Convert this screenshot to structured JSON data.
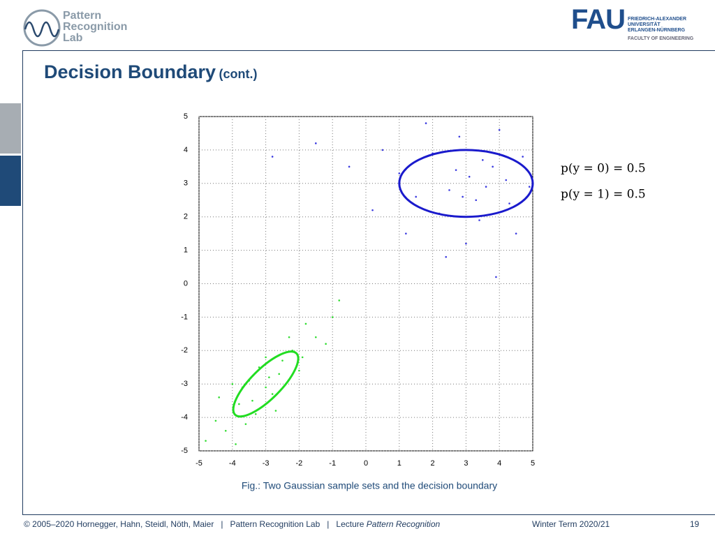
{
  "header": {
    "lab": [
      "Pattern",
      "Recognition",
      "Lab"
    ],
    "logo": "FAU",
    "university": [
      "FRIEDRICH-ALEXANDER",
      "UNIVERSITÄT",
      "ERLANGEN-NÜRNBERG"
    ],
    "faculty": "FACULTY OF ENGINEERING"
  },
  "slide": {
    "title": "Decision Boundary",
    "title_suffix": "(cont.)"
  },
  "chart_data": {
    "type": "scatter",
    "xlim": [
      -5,
      5
    ],
    "ylim": [
      -5,
      5
    ],
    "xticks": [
      -5,
      -4,
      -3,
      -2,
      -1,
      0,
      1,
      2,
      3,
      4,
      5
    ],
    "yticks": [
      -5,
      -4,
      -3,
      -2,
      -1,
      0,
      1,
      2,
      3,
      4,
      5
    ],
    "grid": true,
    "series": [
      {
        "color": "#3a3ae0",
        "x": [
          3.1,
          2.5,
          3.8,
          2.0,
          4.3,
          1.5,
          3.4,
          2.8,
          4.7,
          1.0,
          3.6,
          2.2,
          4.0,
          0.5,
          3.0,
          4.5,
          1.8,
          2.7,
          3.3,
          -0.5,
          0.2,
          4.9,
          2.4,
          3.9,
          -1.5,
          1.2,
          3.5,
          2.9,
          4.2,
          -2.8
        ],
        "values": [
          3.2,
          2.8,
          3.5,
          3.9,
          2.4,
          2.6,
          1.9,
          4.4,
          3.8,
          3.3,
          2.9,
          2.1,
          4.6,
          4.0,
          1.2,
          1.5,
          4.8,
          3.4,
          2.5,
          3.5,
          2.2,
          2.9,
          0.8,
          0.2,
          4.2,
          1.5,
          3.7,
          2.6,
          3.1,
          3.8
        ]
      },
      {
        "color": "#33dd33",
        "x": [
          -3.0,
          -2.6,
          -3.4,
          -2.2,
          -3.8,
          -4.2,
          -2.0,
          -3.2,
          -2.8,
          -1.5,
          -4.5,
          -3.6,
          -2.4,
          -1.8,
          -3.0,
          -4.0,
          -2.7,
          -1.2,
          -3.5,
          -4.8,
          -2.3,
          -0.8,
          -3.9,
          -2.5,
          -3.3,
          -1.0,
          -4.4,
          -2.9,
          -1.9,
          -3.7
        ],
        "values": [
          -3.1,
          -2.7,
          -3.5,
          -2.0,
          -3.6,
          -4.4,
          -2.6,
          -2.5,
          -3.3,
          -1.6,
          -4.1,
          -4.2,
          -3.0,
          -1.2,
          -2.2,
          -3.0,
          -3.8,
          -1.8,
          -2.9,
          -4.7,
          -1.6,
          -0.5,
          -4.8,
          -2.3,
          -3.9,
          -1.0,
          -3.4,
          -2.8,
          -2.2,
          -3.1
        ]
      }
    ],
    "ellipses": [
      {
        "center_x": 3,
        "center_y": 3,
        "rx": 2,
        "ry": 1,
        "angle": 0,
        "color": "#1a1acc"
      },
      {
        "center_x": -3,
        "center_y": -3,
        "rx": 1.3,
        "ry": 0.45,
        "angle": 45,
        "color": "#22dd22"
      }
    ],
    "annotations": [
      "p(y = 0) = 0.5",
      "p(y = 1) = 0.5"
    ],
    "caption": "Fig.: Two Gaussian sample sets and the decision boundary"
  },
  "footer": {
    "copyright": "© 2005–2020 Hornegger, Hahn, Steidl, Nöth, Maier",
    "separator": "|",
    "lab": "Pattern Recognition Lab",
    "lecture": "Lecture",
    "course": "Pattern Recognition",
    "term": "Winter Term 2020/21",
    "page": "19"
  }
}
